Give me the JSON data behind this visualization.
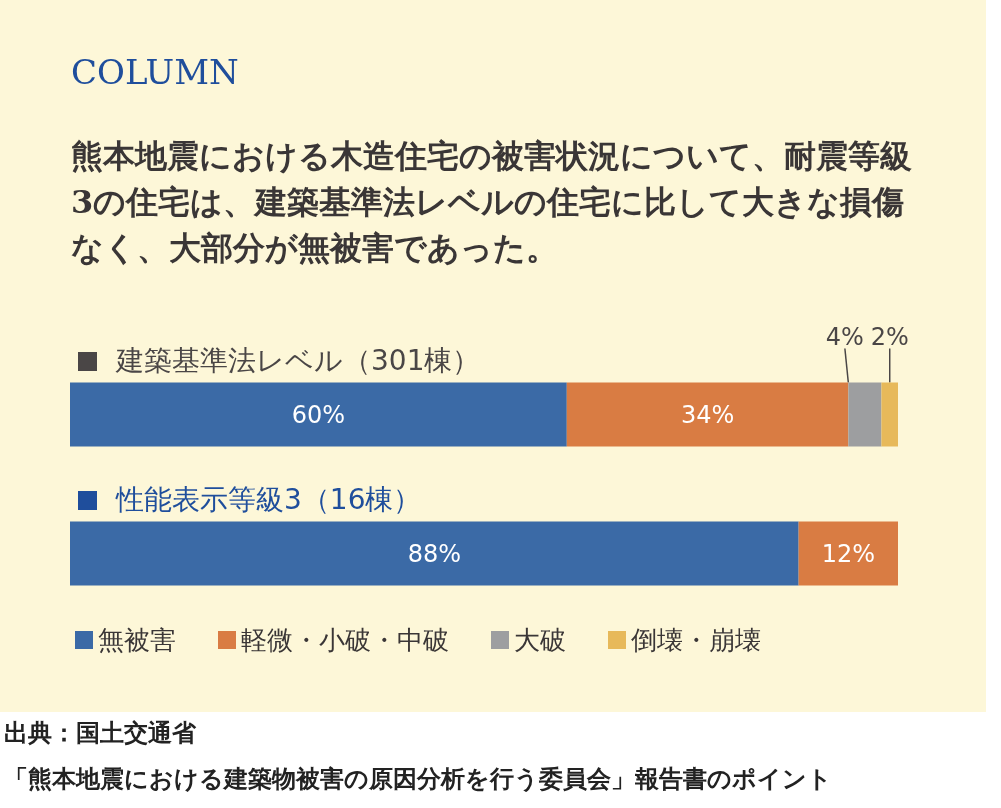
{
  "chart_data": {
    "type": "bar",
    "orientation": "horizontal",
    "stacked": true,
    "title": "COLUMN",
    "subtitle": "熊本地震における木造住宅の被害状況について、耐震等級3の住宅は、建築基準法レベルの住宅に比して大きな損傷なく、大部分が無被害であった。",
    "categories": [
      "建築基準法レベル（301棟）",
      "性能表示等級3（16棟）"
    ],
    "xlim": [
      0,
      100
    ],
    "series": [
      {
        "name": "無被害",
        "color": "#3b6aa6",
        "values": [
          60,
          88
        ],
        "value_labels": [
          "60%",
          "88%"
        ]
      },
      {
        "name": "軽微・小破・中破",
        "color": "#d97c43",
        "values": [
          34,
          12
        ],
        "value_labels": [
          "34%",
          "12%"
        ]
      },
      {
        "name": "大破",
        "color": "#9d9ea0",
        "values": [
          4,
          null
        ],
        "value_labels": [
          "4%",
          null
        ]
      },
      {
        "name": "倒壊・崩壊",
        "color": "#e7b95a",
        "values": [
          2,
          null
        ],
        "value_labels": [
          "2%",
          null
        ]
      }
    ],
    "legend": "bottom",
    "grid": false,
    "tick_labels": "y",
    "annotations": [
      "出典：国土交通省",
      "「熊本地震における建築物被害の原因分析を行う委員会」報告書のポイント"
    ]
  }
}
